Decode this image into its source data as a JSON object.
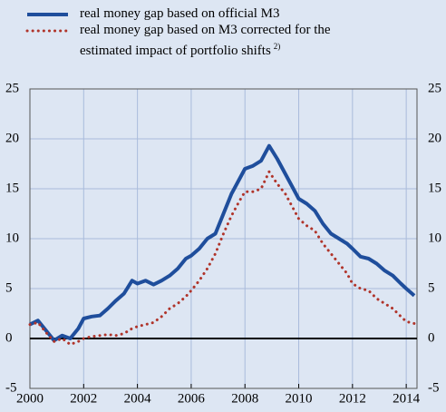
{
  "chart_data": {
    "type": "line",
    "x": [
      2000.0,
      2000.3,
      2000.6,
      2000.9,
      2001.2,
      2001.5,
      2001.8,
      2002.0,
      2002.3,
      2002.6,
      2002.9,
      2003.2,
      2003.5,
      2003.8,
      2004.0,
      2004.3,
      2004.6,
      2004.9,
      2005.2,
      2005.5,
      2005.8,
      2006.0,
      2006.3,
      2006.6,
      2006.9,
      2007.2,
      2007.5,
      2007.8,
      2008.0,
      2008.3,
      2008.6,
      2008.9,
      2009.2,
      2009.5,
      2009.8,
      2010.0,
      2010.3,
      2010.6,
      2010.9,
      2011.2,
      2011.5,
      2011.8,
      2012.0,
      2012.3,
      2012.6,
      2012.9,
      2013.2,
      2013.5,
      2013.8,
      2014.0,
      2014.3
    ],
    "series": [
      {
        "name": "real money gap based on official M3",
        "color": "#1f4e9c",
        "style": "solid",
        "values": [
          1.4,
          1.8,
          0.8,
          -0.2,
          0.3,
          0.0,
          1.0,
          2.0,
          2.2,
          2.3,
          3.0,
          3.8,
          4.5,
          5.8,
          5.5,
          5.8,
          5.4,
          5.8,
          6.3,
          7.0,
          8.0,
          8.3,
          9.0,
          10.0,
          10.5,
          12.5,
          14.5,
          16.0,
          17.0,
          17.3,
          17.8,
          19.3,
          18.0,
          16.5,
          15.0,
          14.0,
          13.5,
          12.8,
          11.5,
          10.5,
          10.0,
          9.5,
          9.0,
          8.2,
          8.0,
          7.5,
          6.8,
          6.3,
          5.5,
          5.0,
          4.3
        ]
      },
      {
        "name": "real money gap based on M3 corrected for the estimated impact of portfolio shifts",
        "note": "2)",
        "color": "#b0342a",
        "style": "dotted",
        "values": [
          1.4,
          1.6,
          0.6,
          -0.3,
          0.0,
          -0.6,
          -0.3,
          0.0,
          0.2,
          0.3,
          0.4,
          0.3,
          0.5,
          1.0,
          1.2,
          1.4,
          1.6,
          2.2,
          3.0,
          3.5,
          4.2,
          4.8,
          5.8,
          7.0,
          8.5,
          10.5,
          12.3,
          13.8,
          14.7,
          14.7,
          15.0,
          16.7,
          15.5,
          14.5,
          13.0,
          12.0,
          11.3,
          10.8,
          9.5,
          8.5,
          7.5,
          6.5,
          5.5,
          5.0,
          4.8,
          4.0,
          3.5,
          3.0,
          2.2,
          1.7,
          1.5
        ]
      }
    ],
    "xlim": [
      2000,
      2014.4
    ],
    "xticks": [
      2000,
      2002,
      2004,
      2006,
      2008,
      2010,
      2012,
      2014
    ],
    "ylim": [
      -5,
      25
    ],
    "yticks": [
      -5,
      0,
      5,
      10,
      15,
      20,
      25
    ],
    "y2lim": [
      -5,
      25
    ],
    "y2ticks": [
      -5,
      0,
      5,
      10,
      15,
      20,
      25
    ],
    "grid": true
  }
}
